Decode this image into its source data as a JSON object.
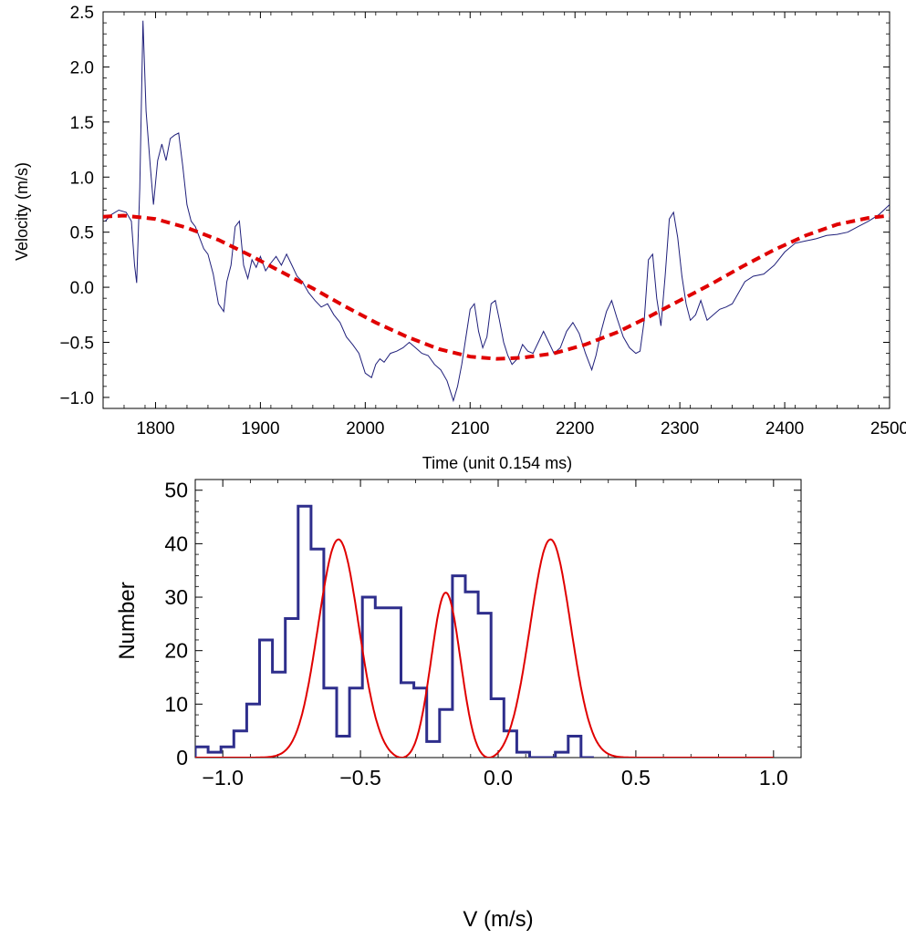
{
  "chart_data": [
    {
      "type": "line",
      "xlabel": "Time  (unit 0.154 ms)",
      "ylabel": "Velocity   (m/s)",
      "xlim": [
        1750,
        2500
      ],
      "ylim": [
        -1.1,
        2.5
      ],
      "xticks": [
        1800,
        1900,
        2000,
        2100,
        2200,
        2300,
        2400,
        2500
      ],
      "yticks": [
        -1.0,
        -0.5,
        0.0,
        0.5,
        1.0,
        1.5,
        2.0,
        2.5
      ],
      "ytick_labels": [
        "−1.0",
        "−0.5",
        "0.0",
        "0.5",
        "1.0",
        "1.5",
        "2.0",
        "2.5"
      ],
      "grid": false,
      "series": [
        {
          "style": "solid",
          "color": "#1f1f7a",
          "x": [
            1752,
            1758,
            1765,
            1772,
            1777,
            1780,
            1782,
            1785,
            1788,
            1791,
            1795,
            1798,
            1802,
            1806,
            1810,
            1814,
            1818,
            1822,
            1826,
            1830,
            1834,
            1838,
            1842,
            1846,
            1850,
            1855,
            1860,
            1865,
            1868,
            1872,
            1876,
            1880,
            1884,
            1888,
            1892,
            1896,
            1900,
            1905,
            1910,
            1915,
            1920,
            1925,
            1930,
            1935,
            1940,
            1946,
            1952,
            1958,
            1964,
            1970,
            1976,
            1982,
            1988,
            1994,
            2000,
            2006,
            2010,
            2014,
            2018,
            2024,
            2030,
            2036,
            2042,
            2048,
            2054,
            2060,
            2066,
            2072,
            2078,
            2084,
            2088,
            2092,
            2096,
            2100,
            2104,
            2108,
            2112,
            2116,
            2120,
            2124,
            2128,
            2132,
            2136,
            2140,
            2145,
            2150,
            2155,
            2160,
            2165,
            2170,
            2175,
            2180,
            2186,
            2192,
            2198,
            2204,
            2210,
            2216,
            2220,
            2225,
            2230,
            2235,
            2240,
            2246,
            2252,
            2258,
            2262,
            2266,
            2270,
            2274,
            2278,
            2282,
            2286,
            2290,
            2294,
            2298,
            2302,
            2306,
            2310,
            2315,
            2320,
            2326,
            2332,
            2338,
            2344,
            2350,
            2356,
            2362,
            2370,
            2380,
            2390,
            2400,
            2410,
            2420,
            2430,
            2440,
            2450,
            2460,
            2470,
            2480,
            2490,
            2500
          ],
          "y": [
            0.6,
            0.66,
            0.7,
            0.68,
            0.6,
            0.2,
            0.04,
            0.9,
            2.42,
            1.6,
            1.1,
            0.75,
            1.15,
            1.3,
            1.15,
            1.35,
            1.38,
            1.4,
            1.1,
            0.75,
            0.6,
            0.55,
            0.45,
            0.35,
            0.3,
            0.12,
            -0.15,
            -0.22,
            0.05,
            0.2,
            0.55,
            0.6,
            0.2,
            0.08,
            0.25,
            0.18,
            0.28,
            0.15,
            0.22,
            0.28,
            0.2,
            0.3,
            0.2,
            0.1,
            0.05,
            -0.05,
            -0.12,
            -0.18,
            -0.15,
            -0.25,
            -0.32,
            -0.45,
            -0.52,
            -0.6,
            -0.78,
            -0.82,
            -0.7,
            -0.65,
            -0.68,
            -0.6,
            -0.58,
            -0.55,
            -0.5,
            -0.55,
            -0.6,
            -0.62,
            -0.7,
            -0.75,
            -0.85,
            -1.03,
            -0.9,
            -0.7,
            -0.45,
            -0.2,
            -0.15,
            -0.4,
            -0.55,
            -0.45,
            -0.15,
            -0.12,
            -0.3,
            -0.5,
            -0.62,
            -0.7,
            -0.65,
            -0.52,
            -0.58,
            -0.6,
            -0.5,
            -0.4,
            -0.5,
            -0.6,
            -0.55,
            -0.4,
            -0.32,
            -0.42,
            -0.6,
            -0.75,
            -0.62,
            -0.4,
            -0.22,
            -0.12,
            -0.28,
            -0.45,
            -0.55,
            -0.6,
            -0.58,
            -0.3,
            0.25,
            0.3,
            -0.1,
            -0.35,
            0.1,
            0.62,
            0.68,
            0.45,
            0.1,
            -0.15,
            -0.3,
            -0.25,
            -0.12,
            -0.3,
            -0.25,
            -0.2,
            -0.18,
            -0.15,
            -0.05,
            0.05,
            0.1,
            0.12,
            0.2,
            0.32,
            0.4,
            0.42,
            0.44,
            0.47,
            0.48,
            0.5,
            0.55,
            0.6,
            0.66,
            0.75
          ]
        },
        {
          "style": "dashed",
          "color": "#e00000",
          "amplitude": 0.65,
          "x": [
            1750,
            1770,
            1800,
            1830,
            1860,
            1890,
            1920,
            1950,
            1980,
            2010,
            2040,
            2070,
            2100,
            2125,
            2150,
            2180,
            2210,
            2240,
            2270,
            2300,
            2330,
            2360,
            2390,
            2420,
            2450,
            2480,
            2500
          ],
          "y": [
            0.64,
            0.65,
            0.62,
            0.54,
            0.43,
            0.29,
            0.14,
            -0.01,
            -0.17,
            -0.32,
            -0.45,
            -0.56,
            -0.63,
            -0.65,
            -0.64,
            -0.6,
            -0.52,
            -0.41,
            -0.27,
            -0.12,
            0.03,
            0.19,
            0.34,
            0.47,
            0.57,
            0.63,
            0.65
          ]
        }
      ]
    },
    {
      "type": "bar",
      "xlabel": "V   (m/s)",
      "ylabel": "Number",
      "xlim": [
        -1.1,
        1.1
      ],
      "ylim": [
        0,
        52
      ],
      "xticks": [
        -1.0,
        -0.5,
        0.0,
        0.5,
        1.0
      ],
      "xtick_labels": [
        "−1.0",
        "−0.5",
        "0.0",
        "0.5",
        "1.0"
      ],
      "yticks": [
        0,
        10,
        20,
        30,
        40,
        50
      ],
      "grid": false,
      "histogram": {
        "color": "#2e2e8c",
        "bin_start": -1.1,
        "bin_width": 0.0467,
        "counts": [
          2,
          1,
          2,
          5,
          10,
          22,
          16,
          26,
          47,
          39,
          13,
          4,
          13,
          30,
          28,
          28,
          14,
          13,
          3,
          9,
          34,
          31,
          27,
          11,
          5,
          1,
          0,
          0,
          1,
          4,
          0
        ]
      },
      "fit_curve": {
        "color": "#e00000",
        "peaks": [
          {
            "center": -0.58,
            "height": 40.8
          },
          {
            "center": -0.19,
            "height": 31
          },
          {
            "center": 0.19,
            "height": 40.8
          }
        ],
        "zeros": [
          -0.37,
          -0.01
        ]
      }
    }
  ]
}
